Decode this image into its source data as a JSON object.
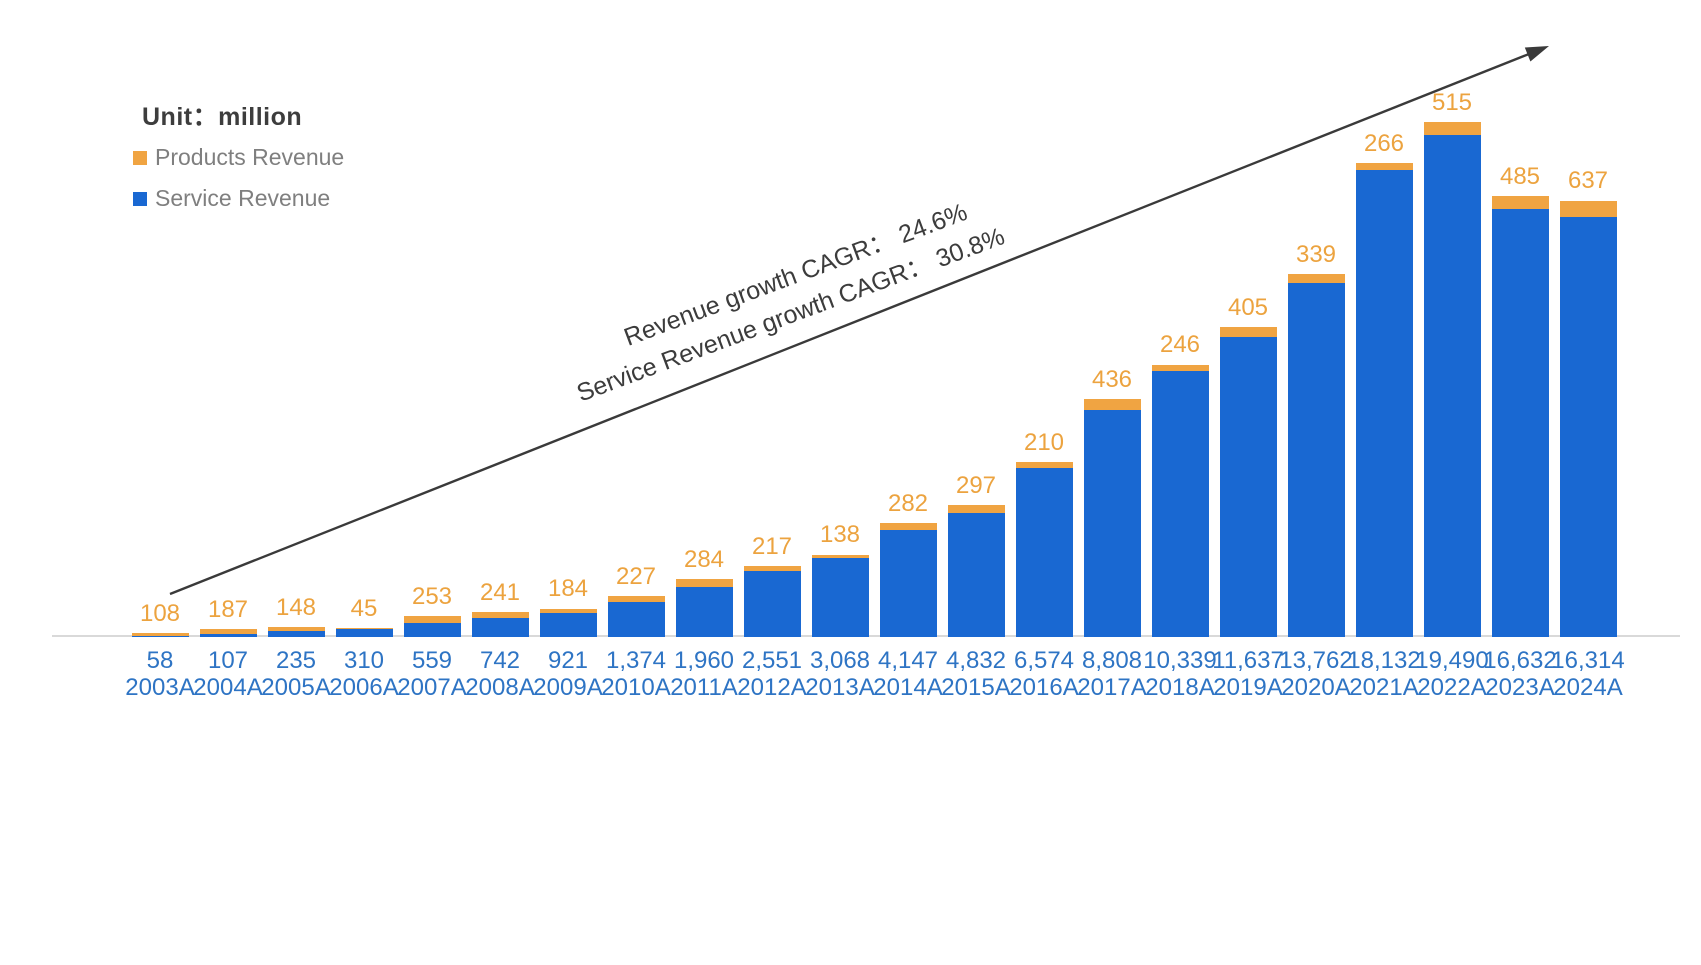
{
  "unit_label": "Unit：million",
  "legend": {
    "products": "Products Revenue",
    "service": "Service Revenue"
  },
  "annotations": {
    "line1": "Revenue growth CAGR： 24.6%",
    "line2": "Service Revenue growth CAGR： 30.8%"
  },
  "colors": {
    "service_bar": "#1968D2",
    "products_bar": "#F0A442",
    "products_label_text": "#ECA33F",
    "axis_text": "#2E74C4",
    "legend_text": "#7f7f7f",
    "arrow": "#3a3a3a",
    "axis_line": "#d9d9d9"
  },
  "chart_data": {
    "type": "bar",
    "subtype": "stacked",
    "title": "",
    "unit": "million",
    "legend_position": "top-left",
    "grid": false,
    "ylim": [
      0,
      20600
    ],
    "categories": [
      "2003A",
      "2004A",
      "2005A",
      "2006A",
      "2007A",
      "2008A",
      "2009A",
      "2010A",
      "2011A",
      "2012A",
      "2013A",
      "2014A",
      "2015A",
      "2016A",
      "2017A",
      "2018A",
      "2019A",
      "2020A",
      "2021A",
      "2022A",
      "2023A",
      "2024A"
    ],
    "series": [
      {
        "name": "Service Revenue",
        "values": [
          58,
          107,
          235,
          310,
          559,
          742,
          921,
          1374,
          1960,
          2551,
          3068,
          4147,
          4832,
          6574,
          8808,
          10339,
          11637,
          13762,
          18132,
          19490,
          16632,
          16314
        ],
        "labels": [
          "58",
          "107",
          "235",
          "310",
          "559",
          "742",
          "921",
          "1,374",
          "1,960",
          "2,551",
          "3,068",
          "4,147",
          "4,832",
          "6,574",
          "8,808",
          "10,339",
          "11,637",
          "13,762",
          "18,132",
          "19,490",
          "16,632",
          "16,314"
        ]
      },
      {
        "name": "Products Revenue",
        "values": [
          108,
          187,
          148,
          45,
          253,
          241,
          184,
          227,
          284,
          217,
          138,
          282,
          297,
          210,
          436,
          246,
          405,
          339,
          266,
          515,
          485,
          637
        ],
        "labels": [
          "108",
          "187",
          "148",
          "45",
          "253",
          "241",
          "184",
          "227",
          "284",
          "217",
          "138",
          "282",
          "297",
          "210",
          "436",
          "246",
          "405",
          "339",
          "266",
          "515",
          "485",
          "637"
        ]
      }
    ],
    "annotations": [
      "Revenue growth CAGR： 24.6%",
      "Service Revenue growth CAGR： 30.8%"
    ]
  }
}
